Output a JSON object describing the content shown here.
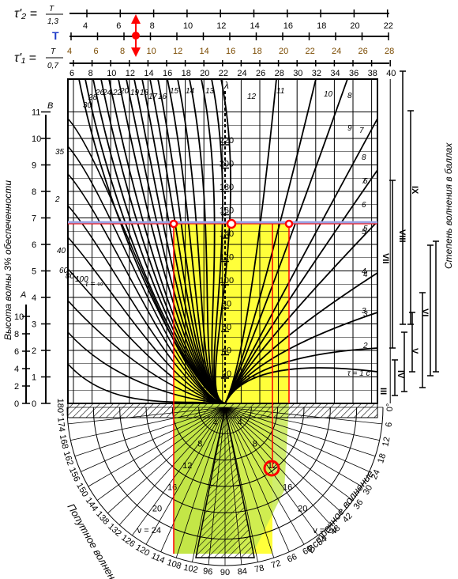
{
  "header": {
    "tau2_label": "τ'₂ =",
    "tau2_num": "T",
    "tau2_den": "1,3",
    "t_label": "T",
    "tau1_label": "τ'₁ =",
    "tau1_num": "T",
    "tau1_den": "0,7"
  },
  "scales": {
    "tau2_ticks": [
      "4",
      "6",
      "8",
      "10",
      "12",
      "14",
      "16",
      "18",
      "20",
      "22"
    ],
    "t_ticks": [
      "4",
      "6",
      "8",
      "10",
      "12",
      "14",
      "16",
      "18",
      "20",
      "22",
      "24",
      "26",
      "28"
    ],
    "tau1_ticks": [
      "6",
      "8",
      "10",
      "12",
      "14",
      "16",
      "18",
      "20",
      "22",
      "24",
      "26",
      "28",
      "30",
      "32",
      "34",
      "36",
      "38",
      "40"
    ]
  },
  "left_axis": {
    "label_B": "B",
    "label_A": "A",
    "height_label": "Высота волны 3% обеспеченности",
    "b_ticks": [
      "0",
      "1",
      "2",
      "3",
      "4",
      "5",
      "6",
      "7",
      "8",
      "9",
      "10",
      "11"
    ],
    "a_ticks": [
      "0",
      "2",
      "4",
      "6",
      "8",
      "10"
    ]
  },
  "lambda_axis": {
    "label": "λ",
    "ticks": [
      "20",
      "40",
      "60",
      "80",
      "100",
      "120",
      "140",
      "160",
      "180",
      "200",
      "220"
    ]
  },
  "left_curve_labels": [
    "35",
    "30",
    "28",
    "26",
    "24",
    "22",
    "20",
    "19",
    "18",
    "17",
    "16",
    "15",
    "14",
    "13",
    "12",
    "11",
    "10",
    "9",
    "8",
    "7",
    "6",
    "5",
    "4",
    "3",
    "2",
    "40",
    "60",
    "80",
    "100",
    "τ = ∞"
  ],
  "right_curve_labels": [
    "8",
    "7",
    "6",
    "5",
    "4",
    "3",
    "2",
    "τ = 1 c"
  ],
  "right_axis": {
    "label": "Степень волнения в баллах",
    "grades": [
      "III",
      "IV",
      "V",
      "VI",
      "VII",
      "VIII",
      "IX"
    ]
  },
  "bottom": {
    "following_label": "Попутное волнение",
    "head_label": "Встречное волнение",
    "angle_ticks_left": [
      "180°",
      "174",
      "168",
      "162",
      "156",
      "150",
      "144",
      "138",
      "132",
      "126",
      "120",
      "114",
      "108",
      "102",
      "96",
      "90"
    ],
    "angle_ticks_right": [
      "84",
      "78",
      "72",
      "66",
      "60",
      "54",
      "48",
      "42",
      "36",
      "30",
      "24",
      "18",
      "12",
      "6",
      "0°"
    ],
    "speed_left": [
      "4",
      "8",
      "12",
      "16",
      "20",
      "v = 24"
    ],
    "speed_right": [
      "4",
      "8",
      "12",
      "16",
      "20",
      "v = 24"
    ]
  },
  "highlight_colors": {
    "yellow": "#ffff3a",
    "green": "#b6e04a",
    "red": "#ff0000",
    "blue_line": "#9aa0e0"
  }
}
